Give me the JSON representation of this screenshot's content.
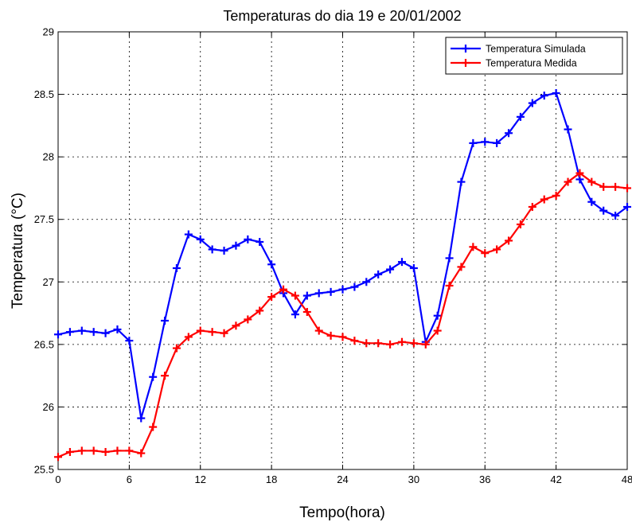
{
  "chart_data": {
    "type": "line",
    "title": "Temperaturas do dia 19 e 20/01/2002",
    "xlabel": "Tempo(hora)",
    "ylabel": "Temperatura (°C)",
    "xlim": [
      0,
      48
    ],
    "ylim": [
      25.5,
      29
    ],
    "xticks": [
      0,
      6,
      12,
      18,
      24,
      30,
      36,
      42,
      48
    ],
    "yticks": [
      25.5,
      26,
      26.5,
      27,
      27.5,
      28,
      28.5,
      29
    ],
    "grid": true,
    "legend_position": "top-right",
    "x": [
      0,
      1,
      2,
      3,
      4,
      5,
      6,
      7,
      8,
      9,
      10,
      11,
      12,
      13,
      14,
      15,
      16,
      17,
      18,
      19,
      20,
      21,
      22,
      23,
      24,
      25,
      26,
      27,
      28,
      29,
      30,
      31,
      32,
      33,
      34,
      35,
      36,
      37,
      38,
      39,
      40,
      41,
      42,
      43,
      44,
      45,
      46,
      47,
      48
    ],
    "series": [
      {
        "name": "Temperatura Simulada",
        "color": "#0000ff",
        "values": [
          26.58,
          26.6,
          26.61,
          26.6,
          26.59,
          26.62,
          26.53,
          25.91,
          26.24,
          26.69,
          27.11,
          27.38,
          27.34,
          27.26,
          27.25,
          27.29,
          27.34,
          27.32,
          27.14,
          26.91,
          26.74,
          26.89,
          26.91,
          26.92,
          26.94,
          26.96,
          27.0,
          27.06,
          27.1,
          27.16,
          27.11,
          26.52,
          26.73,
          27.19,
          27.8,
          28.11,
          28.12,
          28.11,
          28.19,
          28.32,
          28.43,
          28.49,
          28.51,
          28.22,
          27.82,
          27.64,
          27.57,
          27.53,
          27.6
        ]
      },
      {
        "name": "Temperatura Medida",
        "color": "#ff0000",
        "values": [
          25.6,
          25.64,
          25.65,
          25.65,
          25.64,
          25.65,
          25.65,
          25.63,
          25.84,
          26.25,
          26.47,
          26.56,
          26.61,
          26.6,
          26.59,
          26.65,
          26.7,
          26.77,
          26.88,
          26.94,
          26.89,
          26.76,
          26.61,
          26.57,
          26.56,
          26.53,
          26.51,
          26.51,
          26.5,
          26.52,
          26.51,
          26.5,
          26.61,
          26.97,
          27.12,
          27.28,
          27.23,
          27.26,
          27.33,
          27.46,
          27.6,
          27.66,
          27.69,
          27.8,
          27.87,
          27.8,
          27.76,
          27.76,
          27.75
        ]
      }
    ]
  }
}
